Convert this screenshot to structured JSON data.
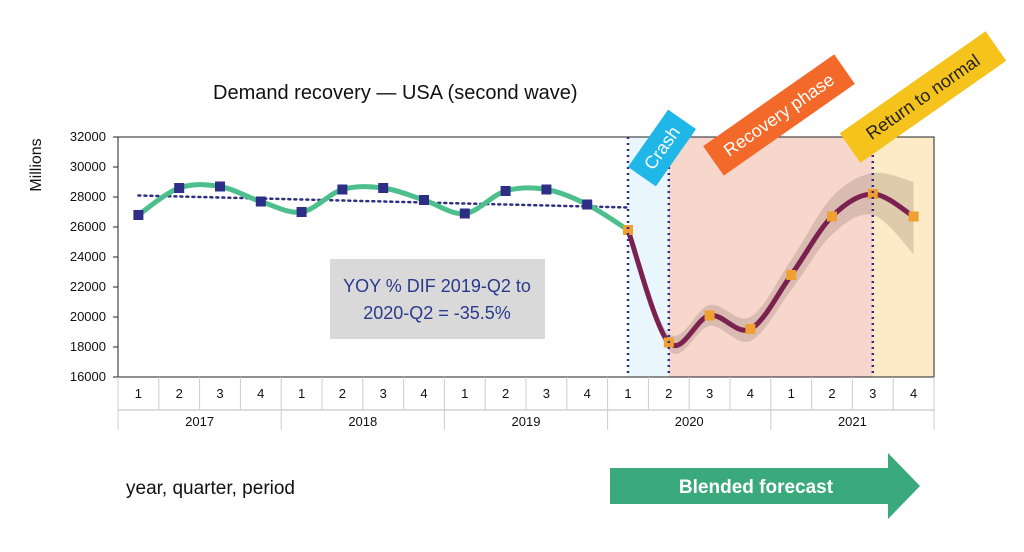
{
  "chart_data": {
    "type": "line",
    "title": "Demand recovery — USA (second wave)",
    "ylabel": "Millions",
    "xlabel": "year, quarter, period",
    "ylim": [
      16000,
      32000
    ],
    "yticks": [
      "32000",
      "30000",
      "28000",
      "26000",
      "24000",
      "22000",
      "20000",
      "18000",
      "16000"
    ],
    "quarters": [
      "1",
      "2",
      "3",
      "4",
      "1",
      "2",
      "3",
      "4",
      "1",
      "2",
      "3",
      "4",
      "1",
      "2",
      "3",
      "4",
      "1",
      "2",
      "3",
      "4"
    ],
    "years": [
      "2017",
      "2018",
      "2019",
      "2020",
      "2021"
    ],
    "series": [
      {
        "role": "actual",
        "color": "#4cbf8c",
        "marker_color": "#2e2e86",
        "x": [
          0,
          1,
          2,
          3,
          4,
          5,
          6,
          7,
          8,
          9,
          10,
          11,
          12
        ],
        "values": [
          26800,
          28600,
          28700,
          27700,
          27000,
          28500,
          28600,
          27800,
          26900,
          28400,
          28500,
          27500,
          25800
        ]
      },
      {
        "role": "forecast",
        "color": "#7a2150",
        "marker_color": "#f0a030",
        "x": [
          12,
          13,
          14,
          15,
          16,
          17,
          18,
          19
        ],
        "values": [
          25800,
          18300,
          20100,
          19200,
          22800,
          26700,
          28200,
          26700
        ]
      }
    ],
    "trend": {
      "x0": 0,
      "x1": 12,
      "y0": 28100,
      "y1": 27300,
      "color": "#2e2e86"
    },
    "band": {
      "x": [
        12,
        13,
        14,
        15,
        16,
        17,
        18,
        19
      ],
      "upper": [
        25800,
        18900,
        20800,
        20000,
        23800,
        28000,
        29600,
        29000
      ],
      "lower": [
        25800,
        17800,
        19400,
        18400,
        21800,
        25500,
        26800,
        24200
      ]
    },
    "annotation": {
      "line1": "YOY % DIF 2019-Q2 to",
      "line2": "2020-Q2 = -35.5%"
    },
    "phases": [
      {
        "label": "Crash",
        "color": "#1fb6e8",
        "shade": "#eaf6fd"
      },
      {
        "label": "Recovery phase",
        "color": "#f2692a",
        "shade": "#f7d6cc"
      },
      {
        "label": "Return to normal",
        "color": "#f6c21c",
        "shade": "#fcebc6"
      }
    ],
    "forecast_arrow": {
      "label": "Blended forecast",
      "color": "#3aaa7c"
    }
  }
}
